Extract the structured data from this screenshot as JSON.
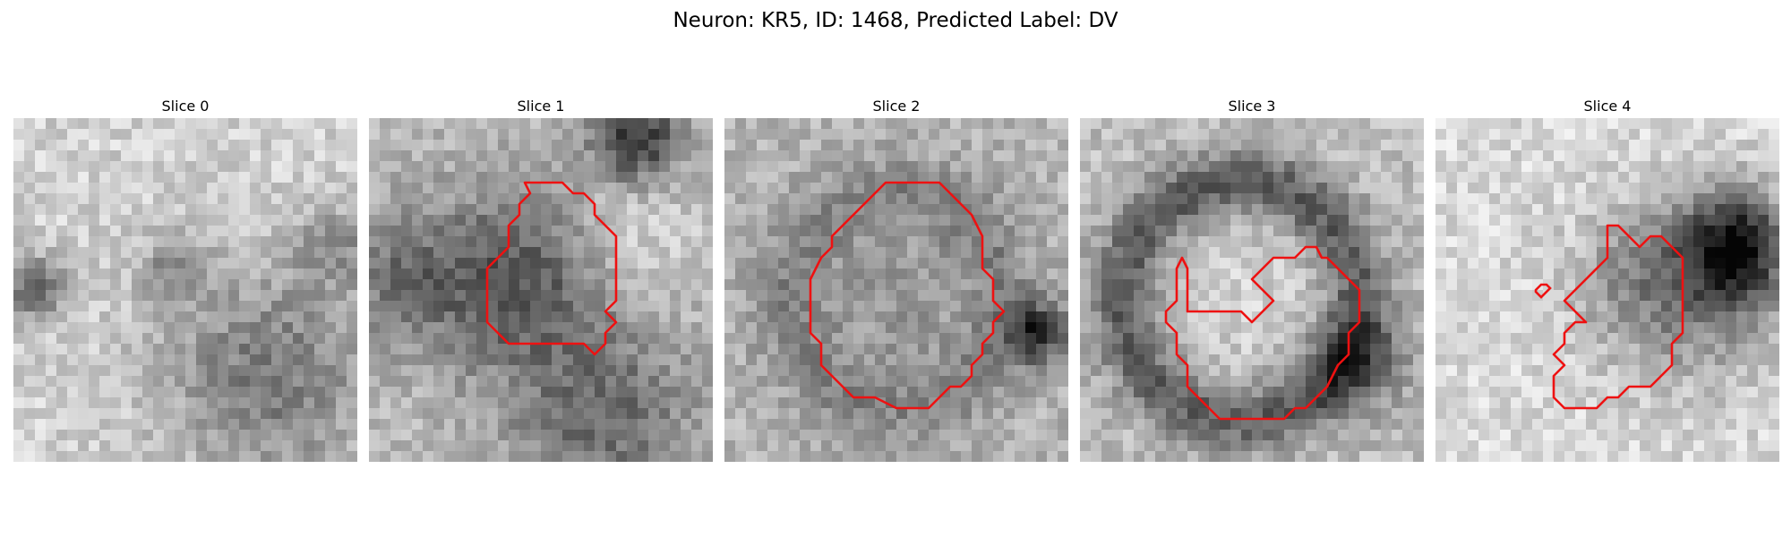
{
  "figure": {
    "title": "Neuron: KR5, ID: 1468, Predicted Label: DV"
  },
  "panels": [
    {
      "title": "Slice 0",
      "image": "grayscale microscopy patch, mostly light with darker mottled lower-right region",
      "contour": "none"
    },
    {
      "title": "Slice 1",
      "image": "grayscale microscopy patch with dark cell body centre-left and dark blob top-right",
      "contour": "red"
    },
    {
      "title": "Slice 2",
      "image": "grayscale microscopy patch with mid-gray round cell filling centre",
      "contour": "red"
    },
    {
      "title": "Slice 3",
      "image": "grayscale microscopy patch with dark ring-shaped cell",
      "contour": "red"
    },
    {
      "title": "Slice 4",
      "image": "grayscale microscopy patch, light with dark region on right side",
      "contour": "red"
    }
  ],
  "colors": {
    "contour": "#ee1111",
    "background": "#ffffff"
  }
}
